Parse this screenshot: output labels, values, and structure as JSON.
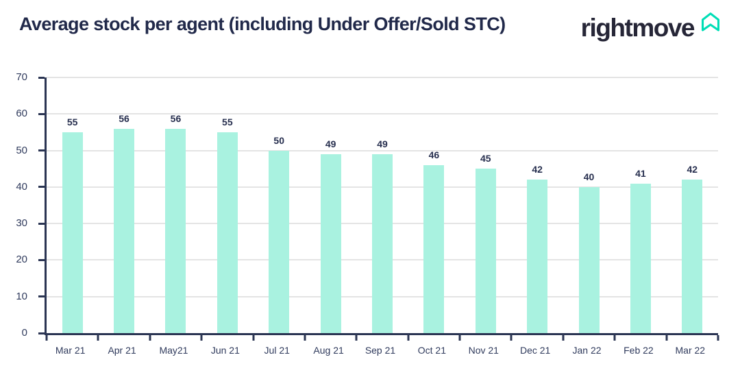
{
  "header": {
    "title": "Average stock per agent (including Under Offer/Sold STC)",
    "logo_text": "rightmove",
    "logo_icon": "rightmove-house-icon"
  },
  "colors": {
    "bar_fill": "#a9f2e0",
    "axis": "#2b3553",
    "grid": "#e4e4e4",
    "title_text": "#21294a",
    "tick_text": "#2f3a5c",
    "value_text": "#262e4e",
    "logo_teal": "#00deb6",
    "logo_ink": "#262637",
    "background": "#ffffff"
  },
  "chart_data": {
    "type": "bar",
    "title": "Average stock per agent (including Under Offer/Sold STC)",
    "categories": [
      "Mar 21",
      "Apr 21",
      "May21",
      "Jun 21",
      "Jul 21",
      "Aug 21",
      "Sep 21",
      "Oct 21",
      "Nov 21",
      "Dec 21",
      "Jan 22",
      "Feb 22",
      "Mar 22"
    ],
    "values": [
      55,
      56,
      56,
      55,
      50,
      49,
      49,
      46,
      45,
      42,
      40,
      41,
      42
    ],
    "xlabel": "",
    "ylabel": "",
    "ylim": [
      0,
      70
    ],
    "ytick_step": 10,
    "yticks": [
      0,
      10,
      20,
      30,
      40,
      50,
      60,
      70
    ],
    "grid": true,
    "bar_labels": true,
    "legend": "none"
  }
}
